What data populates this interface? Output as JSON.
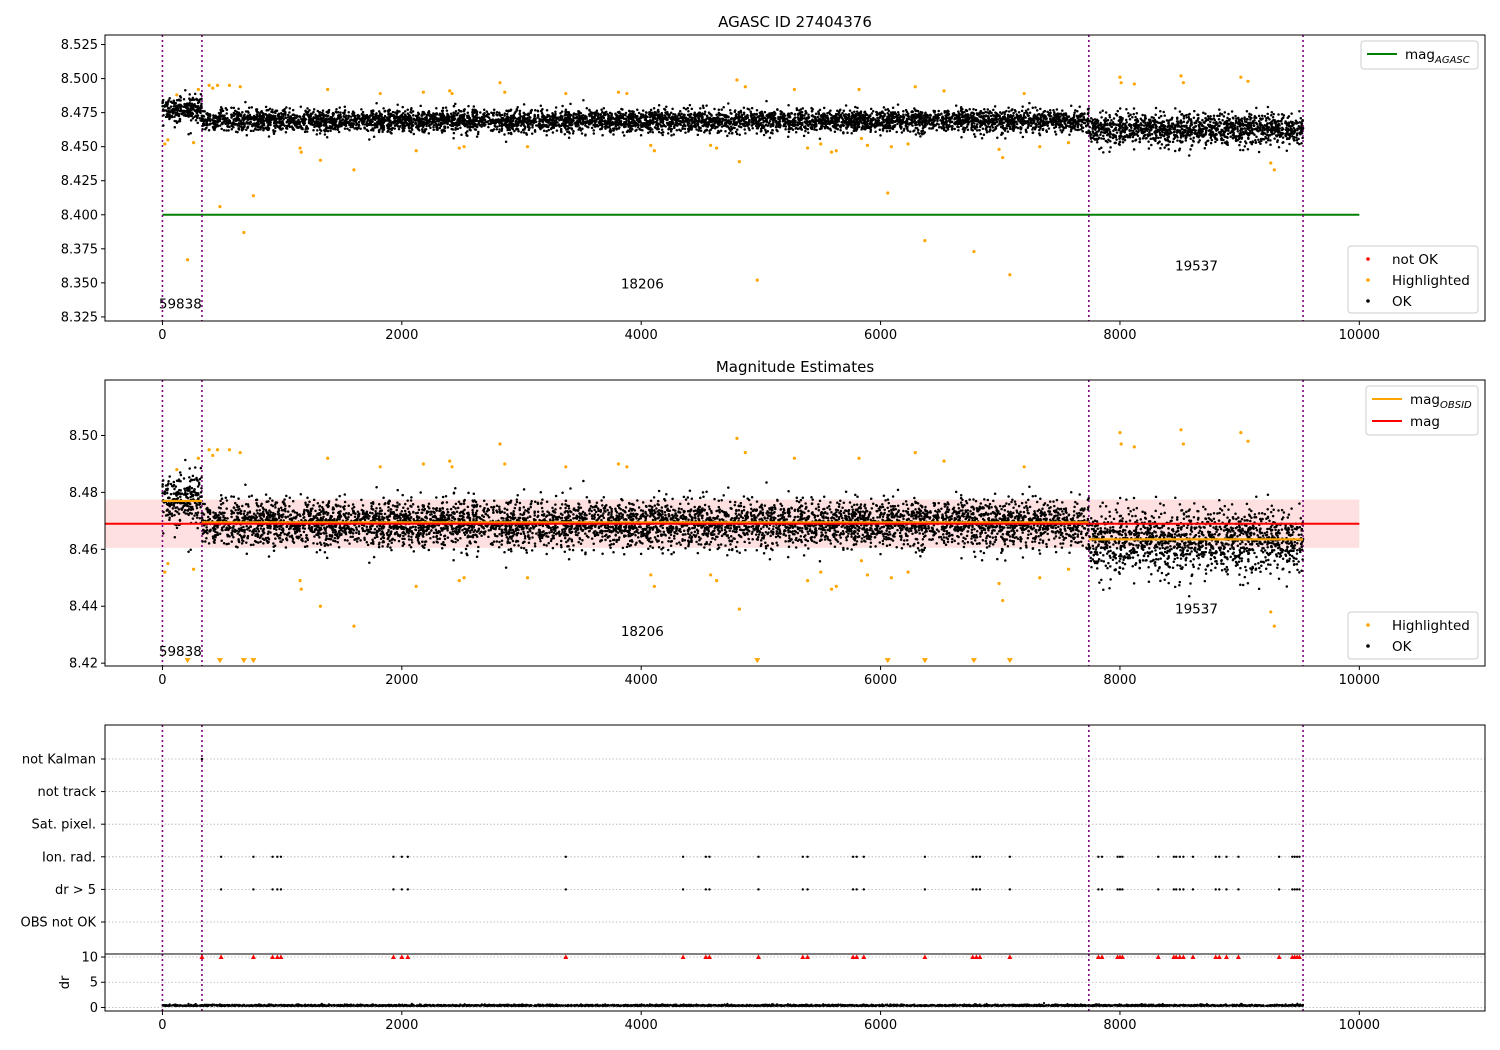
{
  "chart_data": [
    {
      "type": "scatter",
      "title": "AGASC ID 27404376",
      "xlim": [
        -480,
        11050
      ],
      "ylim": [
        8.322,
        8.532
      ],
      "x_ticks": [
        0,
        2000,
        4000,
        6000,
        8000,
        10000
      ],
      "x_tick_labels": [
        "0",
        "2000",
        "4000",
        "6000",
        "8000",
        "10000"
      ],
      "y_ticks": [
        8.325,
        8.35,
        8.375,
        8.4,
        8.425,
        8.45,
        8.475,
        8.5,
        8.525
      ],
      "y_tick_labels": [
        "8.325",
        "8.350",
        "8.375",
        "8.400",
        "8.425",
        "8.450",
        "8.475",
        "8.500",
        "8.525"
      ],
      "lines": [
        {
          "name": "mag",
          "subscript": "AGASC",
          "color": "#008000",
          "x": [
            0,
            10000
          ],
          "y": [
            8.4,
            8.4
          ]
        }
      ],
      "obsid_boundaries": [
        0,
        330,
        7740,
        9530
      ],
      "obsid_labels": [
        {
          "text": "59838",
          "x": -30,
          "y": 8.331
        },
        {
          "text": "18206",
          "x": 3830,
          "y": 8.346
        },
        {
          "text": "19537",
          "x": 8460,
          "y": 8.359
        }
      ],
      "ok_segments": [
        {
          "x0": 0,
          "x1": 330,
          "y": 8.478,
          "spread": 0.009
        },
        {
          "x0": 330,
          "x1": 7740,
          "y": 8.469,
          "spread": 0.008
        },
        {
          "x0": 7740,
          "x1": 9530,
          "y": 8.463,
          "spread": 0.011
        }
      ],
      "highlighted_points": {
        "x": [
          20,
          45,
          120,
          210,
          260,
          300,
          390,
          420,
          460,
          480,
          560,
          650,
          680,
          760,
          1150,
          1160,
          1320,
          1380,
          1600,
          1820,
          2120,
          2180,
          2400,
          2420,
          2480,
          2520,
          2820,
          2860,
          3050,
          3370,
          3810,
          3880,
          4080,
          4110,
          4580,
          4630,
          4800,
          4820,
          4870,
          4970,
          5280,
          5390,
          5500,
          5590,
          5630,
          5820,
          5840,
          5890,
          6060,
          6090,
          6230,
          6290,
          6370,
          6530,
          6780,
          6990,
          7020,
          7080,
          7200,
          7330,
          7570,
          8000,
          8010,
          8120,
          8510,
          8530,
          9010,
          9070,
          9260,
          9290
        ],
        "y": [
          8.452,
          8.455,
          8.488,
          8.367,
          8.453,
          8.492,
          8.495,
          8.493,
          8.495,
          8.406,
          8.495,
          8.494,
          8.387,
          8.414,
          8.449,
          8.446,
          8.44,
          8.492,
          8.433,
          8.489,
          8.447,
          8.49,
          8.491,
          8.489,
          8.449,
          8.45,
          8.497,
          8.49,
          8.45,
          8.489,
          8.49,
          8.489,
          8.451,
          8.447,
          8.451,
          8.449,
          8.499,
          8.439,
          8.494,
          8.352,
          8.492,
          8.449,
          8.452,
          8.446,
          8.447,
          8.492,
          8.456,
          8.451,
          8.416,
          8.45,
          8.452,
          8.494,
          8.381,
          8.491,
          8.373,
          8.448,
          8.442,
          8.356,
          8.489,
          8.45,
          8.453,
          8.501,
          8.497,
          8.496,
          8.502,
          8.497,
          8.501,
          8.498,
          8.438,
          8.433
        ]
      },
      "legends": [
        {
          "placement": "upper-right",
          "entries": [
            {
              "label": "mag",
              "subscript": "AGASC",
              "marker": "line",
              "color": "#008000"
            }
          ]
        },
        {
          "placement": "lower-right",
          "entries": [
            {
              "label": "not OK",
              "marker": "dot",
              "color": "#ff0000"
            },
            {
              "label": "Highlighted",
              "marker": "dot",
              "color": "#ffa500"
            },
            {
              "label": "OK",
              "marker": "dot",
              "color": "#000000"
            }
          ]
        }
      ]
    },
    {
      "type": "scatter",
      "title": "Magnitude Estimates",
      "xlim": [
        -480,
        11050
      ],
      "ylim": [
        8.419,
        8.5195
      ],
      "x_ticks": [
        0,
        2000,
        4000,
        6000,
        8000,
        10000
      ],
      "x_tick_labels": [
        "0",
        "2000",
        "4000",
        "6000",
        "8000",
        "10000"
      ],
      "y_ticks": [
        8.42,
        8.44,
        8.46,
        8.48,
        8.5
      ],
      "y_tick_labels": [
        "8.42",
        "8.44",
        "8.46",
        "8.48",
        "8.50"
      ],
      "band": {
        "x0": -480,
        "x1": 10000,
        "y0": 8.4605,
        "y1": 8.4775,
        "color": "#ff0000",
        "opacity": 0.12
      },
      "lines": [
        {
          "name": "mag",
          "subscript": "OBSID",
          "color": "#ffa500",
          "segments": [
            {
              "x": [
                0,
                330
              ],
              "y": [
                8.477,
                8.477
              ]
            },
            {
              "x": [
                330,
                7740
              ],
              "y": [
                8.4695,
                8.4695
              ]
            },
            {
              "x": [
                7740,
                9530
              ],
              "y": [
                8.4635,
                8.4635
              ]
            }
          ]
        },
        {
          "name": "mag",
          "color": "#ff0000",
          "x": [
            -480,
            10000
          ],
          "y": [
            8.469,
            8.469
          ]
        }
      ],
      "obsid_boundaries": [
        0,
        330,
        7740,
        9530
      ],
      "obsid_labels": [
        {
          "text": "59838",
          "x": -30,
          "y": 8.4225
        },
        {
          "text": "18206",
          "x": 3830,
          "y": 8.4295
        },
        {
          "text": "19537",
          "x": 8460,
          "y": 8.4375
        }
      ],
      "ok_segments": [
        {
          "x0": 0,
          "x1": 330,
          "y": 8.478,
          "spread": 0.009
        },
        {
          "x0": 330,
          "x1": 7740,
          "y": 8.469,
          "spread": 0.008
        },
        {
          "x0": 7740,
          "x1": 9530,
          "y": 8.463,
          "spread": 0.011
        }
      ],
      "highlighted_points": {
        "x": [
          20,
          45,
          120,
          260,
          300,
          390,
          420,
          460,
          560,
          650,
          1150,
          1160,
          1320,
          1380,
          1600,
          1820,
          2120,
          2180,
          2400,
          2420,
          2480,
          2520,
          2820,
          2860,
          3050,
          3370,
          3810,
          3880,
          4080,
          4110,
          4580,
          4630,
          4800,
          4820,
          4870,
          5280,
          5390,
          5500,
          5590,
          5630,
          5820,
          5840,
          5890,
          6090,
          6230,
          6290,
          6530,
          6990,
          7020,
          7200,
          7330,
          7570,
          8000,
          8010,
          8120,
          8510,
          8530,
          9010,
          9070,
          9260,
          9290
        ],
        "y": [
          8.452,
          8.455,
          8.488,
          8.453,
          8.492,
          8.495,
          8.493,
          8.495,
          8.495,
          8.494,
          8.449,
          8.446,
          8.44,
          8.492,
          8.433,
          8.489,
          8.447,
          8.49,
          8.491,
          8.489,
          8.449,
          8.45,
          8.497,
          8.49,
          8.45,
          8.489,
          8.49,
          8.489,
          8.451,
          8.447,
          8.451,
          8.449,
          8.499,
          8.439,
          8.494,
          8.492,
          8.449,
          8.452,
          8.446,
          8.447,
          8.492,
          8.456,
          8.451,
          8.45,
          8.452,
          8.494,
          8.491,
          8.448,
          8.442,
          8.489,
          8.45,
          8.453,
          8.501,
          8.497,
          8.496,
          8.502,
          8.497,
          8.501,
          8.498,
          8.438,
          8.433
        ]
      },
      "clipped_markers": {
        "x": [
          210,
          480,
          680,
          760,
          4970,
          6060,
          6370,
          6780,
          7080
        ],
        "y": 8.42,
        "color": "#ffa500"
      },
      "legends": [
        {
          "placement": "upper-right",
          "entries": [
            {
              "label": "mag",
              "subscript": "OBSID",
              "marker": "line",
              "color": "#ffa500"
            },
            {
              "label": "mag",
              "marker": "line",
              "color": "#ff0000"
            }
          ]
        },
        {
          "placement": "lower-right",
          "entries": [
            {
              "label": "Highlighted",
              "marker": "dot",
              "color": "#ffa500"
            },
            {
              "label": "OK",
              "marker": "dot",
              "color": "#000000"
            }
          ]
        }
      ]
    },
    {
      "type": "scatter",
      "xlim": [
        -480,
        11050
      ],
      "categories": [
        "not Kalman",
        "not track",
        "Sat. pixel.",
        "Ion. rad.",
        "dr > 5",
        "OBS not OK"
      ],
      "grid": true,
      "obsid_boundaries": [
        0,
        330,
        7740,
        9530
      ],
      "flag_points": {
        "not Kalman": [
          330
        ],
        "not track": [],
        "Sat. pixel.": [],
        "Ion. rad.": [
          490,
          760,
          920,
          960,
          990,
          1930,
          2000,
          2050,
          3370,
          4350,
          4540,
          4570,
          4980,
          5350,
          5390,
          5770,
          5800,
          5860,
          6370,
          6770,
          6800,
          6830,
          7080,
          7820,
          7850,
          7980,
          8000,
          8020,
          8320,
          8450,
          8470,
          8500,
          8530,
          8610,
          8800,
          8830,
          8890,
          8990,
          9330,
          9440,
          9460,
          9480,
          9500
        ],
        "dr > 5": [
          490,
          760,
          920,
          960,
          990,
          1930,
          2000,
          2050,
          3370,
          4350,
          4540,
          4570,
          4980,
          5350,
          5390,
          5770,
          5800,
          5860,
          6370,
          6770,
          6800,
          6830,
          7080,
          7820,
          7850,
          7980,
          8000,
          8020,
          8320,
          8450,
          8470,
          8500,
          8530,
          8610,
          8800,
          8830,
          8890,
          8990,
          9330,
          9440,
          9460,
          9480,
          9500
        ],
        "OBS not OK": []
      }
    },
    {
      "type": "scatter",
      "ylabel": "dr",
      "xlim": [
        -480,
        11050
      ],
      "ylim": [
        -0.7,
        10.6
      ],
      "x_ticks": [
        0,
        2000,
        4000,
        6000,
        8000,
        10000
      ],
      "x_tick_labels": [
        "0",
        "2000",
        "4000",
        "6000",
        "8000",
        "10000"
      ],
      "y_ticks": [
        0,
        5,
        10
      ],
      "y_tick_labels": [
        "0",
        "5",
        "10"
      ],
      "grid": true,
      "obsid_boundaries": [
        0,
        330,
        7740,
        9530
      ],
      "baseline": {
        "x0": 0,
        "x1": 9530,
        "y": 0.3
      },
      "clipped_markers": {
        "x": [
          330,
          490,
          760,
          920,
          960,
          990,
          1930,
          2000,
          2050,
          3370,
          4350,
          4540,
          4570,
          4980,
          5350,
          5390,
          5770,
          5800,
          5860,
          6370,
          6770,
          6800,
          6830,
          7080,
          7820,
          7850,
          7980,
          8000,
          8020,
          8320,
          8450,
          8470,
          8500,
          8530,
          8610,
          8800,
          8830,
          8890,
          8990,
          9330,
          9440,
          9460,
          9480,
          9500
        ],
        "y": 10,
        "color": "#ff0000"
      }
    }
  ]
}
